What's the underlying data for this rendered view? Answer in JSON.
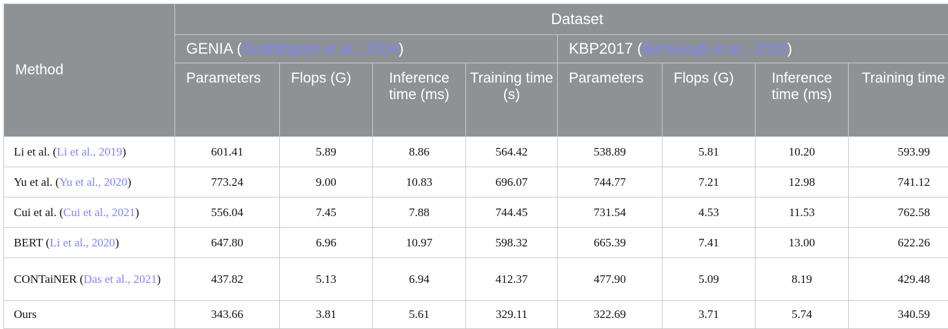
{
  "header": {
    "method": "Method",
    "dataset": "Dataset",
    "genia_name": "GENIA (",
    "genia_cite": "Doddington et al., 2004",
    "genia_close": ")",
    "kbp_name": "KBP2017 (",
    "kbp_cite": "Bentivogli et al., 2010",
    "kbp_close": ")",
    "columns": [
      "Parameters",
      "Flops (G)",
      "Inference time (ms)",
      "Training time (s)"
    ]
  },
  "rows": [
    {
      "name": "Li et al. (",
      "cite": "Li et al., 2019",
      "close": ")",
      "values": [
        "601.41",
        "5.89",
        "8.86",
        "564.42",
        "538.89",
        "5.81",
        "10.20",
        "593.99"
      ]
    },
    {
      "name": "Yu et al. (",
      "cite": "Yu et al., 2020",
      "close": ")",
      "values": [
        "773.24",
        "9.00",
        "10.83",
        "696.07",
        "744.77",
        "7.21",
        "12.98",
        "741.12"
      ]
    },
    {
      "name": "Cui et al. (",
      "cite": "Cui et al., 2021",
      "close": ")",
      "values": [
        "556.04",
        "7.45",
        "7.88",
        "744.45",
        "731.54",
        "4.53",
        "11.53",
        "762.58"
      ]
    },
    {
      "name": "BERT (",
      "cite": "Li et al., 2020",
      "close": ")",
      "values": [
        "647.80",
        "6.96",
        "10.97",
        "598.32",
        "665.39",
        "7.41",
        "13.00",
        "622.26"
      ]
    },
    {
      "name": "CONTaiNER (",
      "cite": "Das et al., 2021",
      "close": ")",
      "values": [
        "437.82",
        "5.13",
        "6.94",
        "412.37",
        "477.90",
        "5.09",
        "8.19",
        "429.48"
      ]
    },
    {
      "name": "Ours",
      "cite": "",
      "close": "",
      "values": [
        "343.66",
        "3.81",
        "5.61",
        "329.11",
        "322.69",
        "3.71",
        "5.74",
        "340.59"
      ]
    }
  ]
}
